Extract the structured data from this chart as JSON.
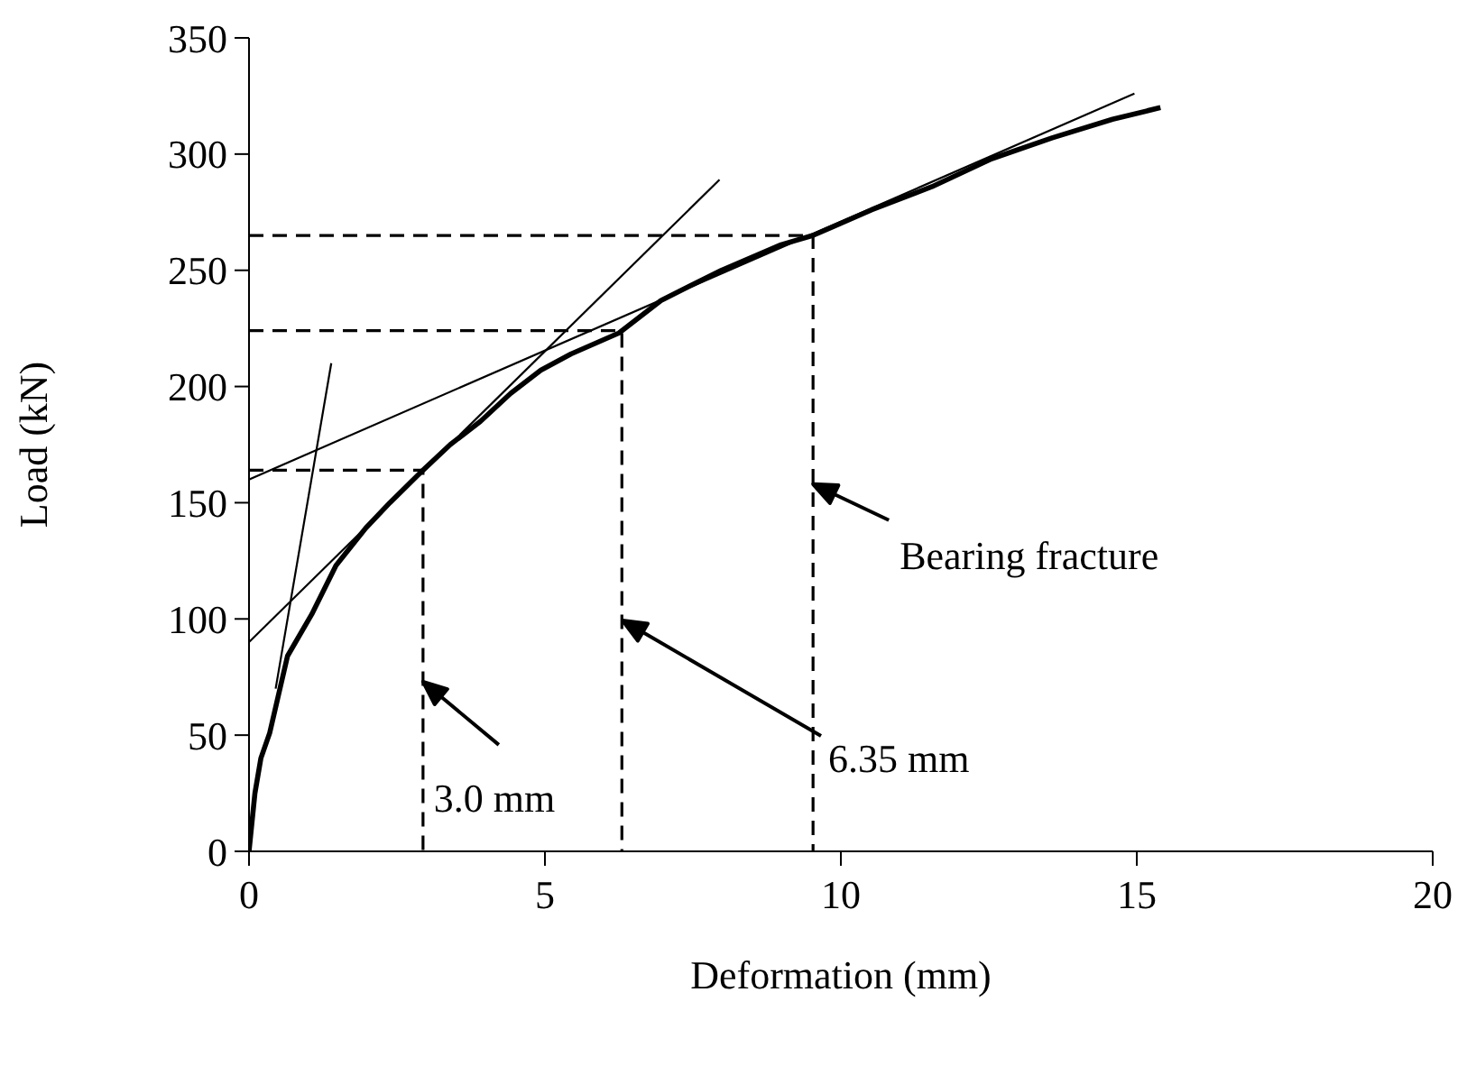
{
  "chart_data": {
    "type": "line",
    "xlabel": "Deformation (mm)",
    "ylabel": "Load (kN)",
    "xlim": [
      0,
      20
    ],
    "xticks": [
      0,
      5,
      10,
      15,
      20
    ],
    "ylim": [
      0,
      350
    ],
    "yticks": [
      0,
      50,
      100,
      150,
      200,
      250,
      300,
      350
    ],
    "grid": false,
    "marker": "none",
    "series": [
      {
        "color": "#000000",
        "x": [
          0,
          0.1,
          0.2,
          0.35,
          0.65,
          1.06,
          1.47,
          1.97,
          2.38,
          2.94,
          3.4,
          3.91,
          4.42,
          4.93,
          5.44,
          6.25,
          6.3,
          6.96,
          7.98,
          8.99,
          9.53,
          10.52,
          11.54,
          12.55,
          13.57,
          14.59,
          15.4
        ],
        "values": [
          0,
          25,
          40,
          51,
          84,
          102,
          123,
          139,
          150,
          164,
          175,
          185,
          197,
          207,
          214,
          223,
          224,
          237,
          250,
          261,
          265,
          276,
          286,
          298,
          307,
          315,
          320
        ]
      },
      {
        "color": "#000000",
        "x": [
          0.45,
          1.39
        ],
        "values": [
          70,
          210
        ]
      },
      {
        "color": "#000000",
        "x": [
          0,
          7.95
        ],
        "values": [
          90,
          289
        ]
      },
      {
        "color": "#000000",
        "x": [
          0,
          14.96
        ],
        "values": [
          160,
          326
        ]
      },
      {
        "color": "#000000",
        "line_style": "dashed",
        "x": [
          0,
          2.94,
          2.94
        ],
        "values": [
          164,
          164,
          0
        ]
      },
      {
        "color": "#000000",
        "line_style": "dashed",
        "x": [
          0,
          6.3,
          6.3
        ],
        "values": [
          224,
          224,
          0
        ]
      },
      {
        "color": "#000000",
        "line_style": "dashed",
        "x": [
          0,
          9.53,
          9.53
        ],
        "values": [
          265,
          265,
          0
        ]
      }
    ],
    "annotations": [
      {
        "text": "3.0 mm",
        "x": 2.94,
        "y": 73
      },
      "6.35 mm",
      {
        "text": "Bearing fracture",
        "x": 9.53,
        "y": 158
      }
    ]
  }
}
